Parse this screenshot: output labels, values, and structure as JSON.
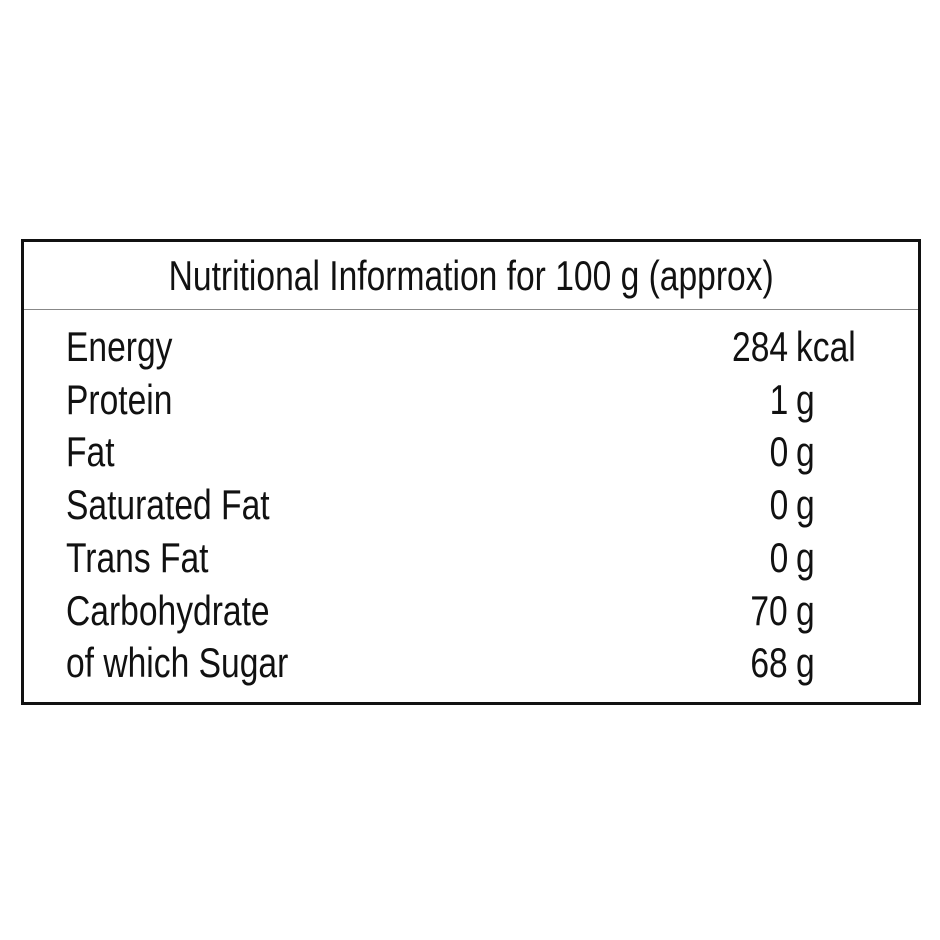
{
  "table": {
    "title": "Nutritional Information for 100 g (approx)",
    "rows": [
      {
        "nutrient": "Energy",
        "amount": 284,
        "unit": "kcal"
      },
      {
        "nutrient": "Protein",
        "amount": 1,
        "unit": "g"
      },
      {
        "nutrient": "Fat",
        "amount": 0,
        "unit": "g"
      },
      {
        "nutrient": "Saturated Fat",
        "amount": 0,
        "unit": "g"
      },
      {
        "nutrient": "Trans Fat",
        "amount": 0,
        "unit": "g"
      },
      {
        "nutrient": "Carbohydrate",
        "amount": 70,
        "unit": "g"
      },
      {
        "nutrient": "of which Sugar",
        "amount": 68,
        "unit": "g"
      }
    ]
  }
}
